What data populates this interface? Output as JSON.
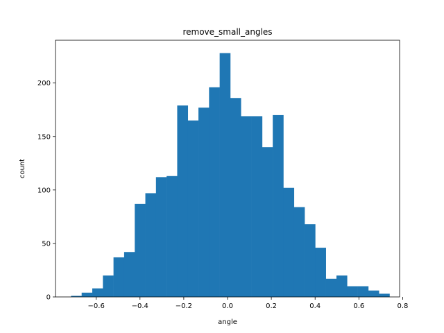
{
  "chart_data": {
    "type": "bar",
    "title": "remove_small_angles",
    "xlabel": "angle",
    "ylabel": "count",
    "xlim": [
      -0.786,
      0.786
    ],
    "ylim": [
      0,
      240
    ],
    "xticks": [
      -0.6,
      -0.4,
      -0.2,
      0.0,
      0.2,
      0.4,
      0.6,
      0.8
    ],
    "xtick_labels": [
      "−0.6",
      "−0.4",
      "−0.2",
      "0.0",
      "0.2",
      "0.4",
      "0.6",
      "0.8"
    ],
    "yticks": [
      0,
      50,
      100,
      150,
      200
    ],
    "ytick_labels": [
      "0",
      "50",
      "100",
      "150",
      "200"
    ],
    "bin_start": -0.715,
    "bin_width": 0.0485,
    "values": [
      1,
      4,
      8,
      20,
      37,
      42,
      87,
      97,
      112,
      113,
      179,
      165,
      177,
      196,
      228,
      186,
      169,
      169,
      140,
      170,
      102,
      84,
      68,
      46,
      17,
      20,
      10,
      10,
      6,
      3
    ],
    "bar_color": "#1f77b4",
    "grid": false,
    "legend": "none"
  }
}
